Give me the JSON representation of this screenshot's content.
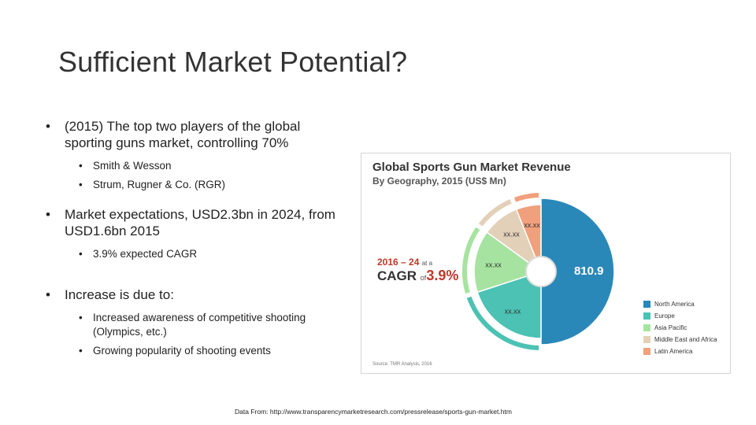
{
  "slide": {
    "title": "Sufficient Market Potential?",
    "bullets": {
      "b1": "(2015) The top two players of the global sporting guns market, controlling 70%",
      "b1_sub1": "Smith & Wesson",
      "b1_sub2": "Strum, Rugner & Co. (RGR)",
      "b2": "Market expectations, USD2.3bn in 2024, from USD1.6bn 2015",
      "b2_sub1": "3.9% expected CAGR",
      "b3": "Increase is due to:",
      "b3_sub1": "Increased awareness of competitive shooting (Olympics, etc.)",
      "b3_sub2": "Growing popularity of shooting events"
    },
    "footer": "Data From: http://www.transparencymarketresearch.com/pressrelease/sports-gun-market.htm"
  },
  "chart_data": {
    "type": "pie",
    "title": "Global Sports Gun Market Revenue",
    "subtitle": "By Geography, 2015 (US$ Mn)",
    "source": "Source: TMR Analysis, 2016",
    "cagr_line1": "2016 – 24",
    "cagr_at": "at a",
    "cagr_line2": "CAGR",
    "cagr_of": "of",
    "cagr_value": "3.9%",
    "legend_position": "right",
    "slices": [
      {
        "name": "North America",
        "value": 50,
        "label": "810.9",
        "color": "#2a88b8"
      },
      {
        "name": "Europe",
        "value": 20,
        "label": "xx.xx",
        "color": "#4bc2b3"
      },
      {
        "name": "Asia Pacific",
        "value": 15,
        "label": "xx.xx",
        "color": "#a6e3a0"
      },
      {
        "name": "Middle East and Africa",
        "value": 9,
        "label": "xx.xx",
        "color": "#e3d0b8"
      },
      {
        "name": "Latin America",
        "value": 6,
        "label": "xx.xx",
        "color": "#f0a07c"
      }
    ]
  }
}
